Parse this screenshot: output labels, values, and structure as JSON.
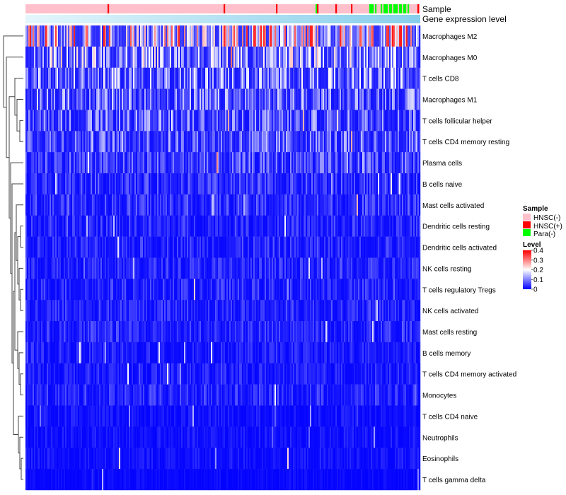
{
  "chart_data": {
    "type": "heatmap",
    "title": "",
    "column_annotations": [
      {
        "name": "Sample",
        "composition": [
          {
            "label": "HNSC(-)",
            "color": "#ffc0cb",
            "fraction": 0.9
          },
          {
            "label": "HNSC(+)",
            "color": "#ff0000",
            "fraction": 0.03
          },
          {
            "label": "Para(-)",
            "color": "#00ff00",
            "fraction": 0.07
          }
        ]
      },
      {
        "name": "Gene expression level",
        "gradient": [
          "#e4f6fc",
          "#87ceeb"
        ]
      }
    ],
    "rows": [
      {
        "label": "Macrophages M2",
        "mean": 0.22
      },
      {
        "label": "Macrophages M0",
        "mean": 0.14
      },
      {
        "label": "T cells CD8",
        "mean": 0.12
      },
      {
        "label": "Macrophages M1",
        "mean": 0.1
      },
      {
        "label": "T cells follicular helper",
        "mean": 0.09
      },
      {
        "label": "T cells CD4 memory resting",
        "mean": 0.09
      },
      {
        "label": "Plasma cells",
        "mean": 0.07
      },
      {
        "label": "B cells naive",
        "mean": 0.05
      },
      {
        "label": "Mast cells activated",
        "mean": 0.05
      },
      {
        "label": "Dendritic cells resting",
        "mean": 0.04
      },
      {
        "label": "Dendritic cells activated",
        "mean": 0.04
      },
      {
        "label": "NK cells resting",
        "mean": 0.04
      },
      {
        "label": "T cells regulatory  Tregs",
        "mean": 0.04
      },
      {
        "label": "NK cells activated",
        "mean": 0.04
      },
      {
        "label": "Mast cells resting",
        "mean": 0.04
      },
      {
        "label": "B cells memory",
        "mean": 0.03
      },
      {
        "label": "T cells CD4 memory activated",
        "mean": 0.03
      },
      {
        "label": "Monocytes",
        "mean": 0.04
      },
      {
        "label": "T cells CD4 naive",
        "mean": 0.02
      },
      {
        "label": "Neutrophils",
        "mean": 0.02
      },
      {
        "label": "Eosinophils",
        "mean": 0.02
      },
      {
        "label": "T cells gamma delta",
        "mean": 0.01
      }
    ],
    "color_scale": {
      "min": 0,
      "max": 0.4,
      "stops": [
        {
          "value": 0,
          "color": "#0000ff"
        },
        {
          "value": 0.2,
          "color": "#ffffff"
        },
        {
          "value": 0.4,
          "color": "#ff0000"
        }
      ]
    },
    "legend": {
      "sample_title": "Sample",
      "sample_entries": [
        {
          "label": "HNSC(-)",
          "color": "#ffc0cb"
        },
        {
          "label": "HNSC(+)",
          "color": "#ff0000"
        },
        {
          "label": "Para(-)",
          "color": "#00ff00"
        }
      ],
      "level_title": "Level",
      "level_ticks": [
        "0.4",
        "0.3",
        "0.2",
        "0.1",
        "0"
      ]
    }
  }
}
